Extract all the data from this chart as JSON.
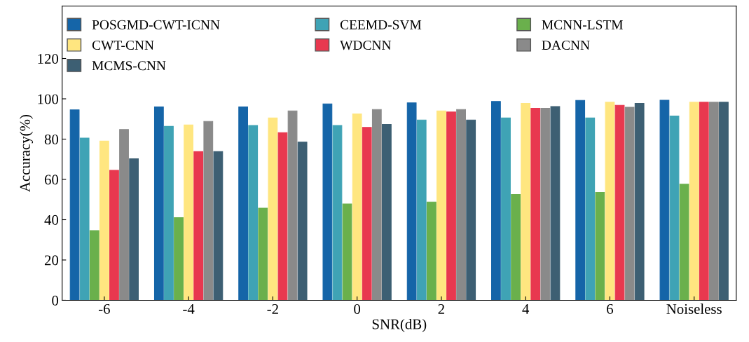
{
  "chart_data": {
    "type": "bar",
    "xlabel": "SNR(dB)",
    "ylabel": "Accuracy(%)",
    "categories": [
      "-6",
      "-4",
      "-2",
      "0",
      "2",
      "4",
      "6",
      "Noiseless"
    ],
    "series": [
      {
        "name": "POSGMD-CWT-ICNN",
        "color": "#1565a8",
        "values": [
          94.5,
          96,
          96,
          97.5,
          98,
          98.7,
          99.2,
          99.3
        ]
      },
      {
        "name": "CEEMD-SVM",
        "color": "#3fa3b5",
        "values": [
          80.5,
          86.3,
          86.8,
          86.8,
          89.5,
          90.5,
          90.5,
          91.5
        ]
      },
      {
        "name": "MCNN-LSTM",
        "color": "#6ab04c",
        "values": [
          34.6,
          41,
          45.7,
          47.8,
          48.8,
          52.5,
          53.5,
          57.6
        ]
      },
      {
        "name": "CWT-CNN",
        "color": "#ffe680",
        "values": [
          79,
          87,
          90.5,
          92.5,
          94,
          97.7,
          98.3,
          98.3
        ]
      },
      {
        "name": "WDCNN",
        "color": "#e8384f",
        "values": [
          64.5,
          73.8,
          83.2,
          85.8,
          93.5,
          95.3,
          96.8,
          98.3
        ]
      },
      {
        "name": "DACNN",
        "color": "#8a8a8a",
        "values": [
          84.8,
          88.8,
          94,
          94.7,
          94.7,
          95.3,
          95.8,
          98.3
        ]
      },
      {
        "name": "MCMS-CNN",
        "color": "#3d5f73",
        "values": [
          70.2,
          73.8,
          78.5,
          87.3,
          89.5,
          96.2,
          97.7,
          98.3
        ]
      }
    ],
    "ylim": [
      0,
      146
    ],
    "yticks": [
      0,
      20,
      40,
      60,
      80,
      100,
      120
    ],
    "grid": false,
    "legend": "top"
  }
}
